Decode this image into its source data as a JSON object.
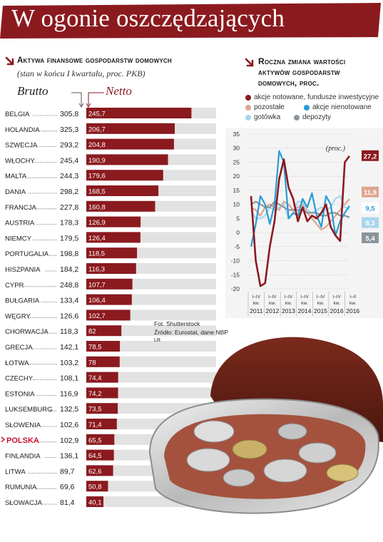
{
  "title": "W ogonie oszczędzających",
  "left_panel": {
    "header": "Aktywa finansowe gospodarstw domowych",
    "subtitle": "(stan w końcu I kwartału, proc. PKB)",
    "col_brutto": "Brutto",
    "col_netto": "Netto"
  },
  "right_panel": {
    "header_lines": [
      "Roczna zmiana wartości",
      "aktywów gospodarstw",
      "domowych, proc."
    ],
    "unit_label": "(proc.)",
    "legend": [
      {
        "label": "akcje notowane, fundusze inwestycyjne",
        "color": "#8b1a1f"
      },
      {
        "label": "pozostałe",
        "color": "#dda58f"
      },
      {
        "label": "akcje nienotowane",
        "color": "#2a9bd6"
      },
      {
        "label": "gotówka",
        "color": "#a9d6ee"
      },
      {
        "label": "depozyty",
        "color": "#8a949b"
      }
    ]
  },
  "credits": {
    "photo": "Fot. Shutterstock",
    "source": "Źródło: Eurostat, dane NBP",
    "initials": "LR"
  },
  "colors": {
    "brand_red": "#8b1a1f",
    "highlight_red": "#c8102e",
    "bar_bg": "#e2e2e2"
  },
  "chart_data": [
    {
      "type": "bar",
      "title": "Aktywa finansowe gospodarstw domowych",
      "subtitle": "(stan w końcu I kwartału, proc. PKB)",
      "highlight": "POLSKA",
      "categories": [
        "BELGIA",
        "HOLANDIA",
        "SZWECJA",
        "WŁOCHY",
        "MALTA",
        "DANIA",
        "FRANCJA",
        "AUSTRIA",
        "NIEMCY",
        "PORTUGALIA",
        "HISZPANIA",
        "CYPR",
        "BUŁGARIA",
        "WĘGRY",
        "CHORWACJA",
        "GRECJA",
        "ŁOTWA",
        "CZECHY",
        "ESTONIA",
        "LUKSEMBURG",
        "SŁOWENIA",
        "POLSKA",
        "FINLANDIA",
        "LITWA",
        "RUMUNIA",
        "SŁOWACJA"
      ],
      "brutto_labels": [
        "305,8",
        "325,3",
        "293,2",
        "245,4",
        "244,3",
        "298,2",
        "227,8",
        "178,3",
        "179,5",
        "198,8",
        "184,2",
        "248,8",
        "133,4",
        "126,6",
        "118,3",
        "142,1",
        "103,2",
        "108,1",
        "116,9",
        "132,5",
        "102,6",
        "102,9",
        "136,1",
        "89,7",
        "69,6",
        "81,4"
      ],
      "netto_labels": [
        "245,7",
        "206,7",
        "204,8",
        "190,9",
        "179,6",
        "168,5",
        "160,8",
        "126,9",
        "126,4",
        "118,5",
        "116,3",
        "107,7",
        "106,4",
        "102,7",
        "82",
        "78,5",
        "78",
        "74,4",
        "74,2",
        "73,5",
        "71,4",
        "65,5",
        "64,5",
        "62,6",
        "50,8",
        "40,1"
      ],
      "series": [
        {
          "name": "Brutto",
          "values": [
            305.8,
            325.3,
            293.2,
            245.4,
            244.3,
            298.2,
            227.8,
            178.3,
            179.5,
            198.8,
            184.2,
            248.8,
            133.4,
            126.6,
            118.3,
            142.1,
            103.2,
            108.1,
            116.9,
            132.5,
            102.6,
            102.9,
            136.1,
            89.7,
            69.6,
            81.4
          ]
        },
        {
          "name": "Netto",
          "values": [
            245.7,
            206.7,
            204.8,
            190.9,
            179.6,
            168.5,
            160.8,
            126.9,
            126.4,
            118.5,
            116.3,
            107.7,
            106.4,
            102.7,
            82,
            78.5,
            78,
            74.4,
            74.2,
            73.5,
            71.4,
            65.5,
            64.5,
            62.6,
            50.8,
            40.1
          ]
        }
      ]
    },
    {
      "type": "line",
      "title": "Roczna zmiana wartości aktywów gospodarstw domowych, proc.",
      "ylabel": "(proc.)",
      "ylim": [
        -20,
        35
      ],
      "yticks": [
        -20,
        -15,
        -10,
        -5,
        0,
        5,
        10,
        15,
        20,
        25,
        30,
        35
      ],
      "x": [
        2011.0,
        2011.25,
        2011.5,
        2011.75,
        2012.0,
        2012.25,
        2012.5,
        2012.75,
        2013.0,
        2013.25,
        2013.5,
        2013.75,
        2014.0,
        2014.25,
        2014.5,
        2014.75,
        2015.0,
        2015.25,
        2015.5,
        2015.75,
        2016.0,
        2016.25
      ],
      "x_tick_labels": [
        {
          "q": "I–IV",
          "kw": "kw.",
          "year": "2011"
        },
        {
          "q": "I–IV",
          "kw": "kw.",
          "year": "2012"
        },
        {
          "q": "I–IV",
          "kw": "kw.",
          "year": "2013"
        },
        {
          "q": "I–IV",
          "kw": "kw.",
          "year": "2014"
        },
        {
          "q": "I–IV",
          "kw": "kw.",
          "year": "2015"
        },
        {
          "q": "I–IV",
          "kw": "kw.",
          "year": "2016"
        },
        {
          "q": "I–II",
          "kw": "kw.",
          "year": "2016"
        }
      ],
      "series": [
        {
          "name": "akcje notowane, fundusze inwestycyjne",
          "color": "#8b1a1f",
          "end_label": "27,2",
          "values": [
            13,
            -10,
            -19,
            -18,
            -5,
            4,
            19,
            26,
            16,
            12,
            4,
            9,
            4,
            6,
            5,
            7,
            10,
            2,
            -1,
            -3,
            25,
            27.2
          ]
        },
        {
          "name": "pozostałe",
          "color": "#dda58f",
          "end_label": "11,9",
          "values": [
            9,
            8,
            6,
            9,
            10,
            9,
            8,
            11,
            10,
            8,
            9,
            10,
            7,
            5,
            3,
            1,
            2,
            4,
            6,
            8,
            10,
            11.9
          ]
        },
        {
          "name": "akcje nienotowane",
          "color": "#2a9bd6",
          "end_label": "9,5",
          "values": [
            -5,
            3,
            13,
            10,
            3,
            10,
            29,
            25,
            5,
            7,
            6,
            12,
            9,
            14,
            6,
            2,
            13,
            10,
            -1,
            4,
            7,
            9.5
          ]
        },
        {
          "name": "gotówka",
          "color": "#a9d6ee",
          "end_label": "8,3",
          "values": [
            8,
            5,
            5,
            6,
            9,
            8,
            9,
            10,
            5,
            7,
            11,
            11,
            8,
            7,
            8,
            9,
            8,
            9,
            12,
            13,
            9,
            8.3
          ]
        },
        {
          "name": "depozyty",
          "color": "#8a949b",
          "end_label": "5,4",
          "values": [
            10,
            11,
            10,
            9,
            9,
            11,
            10,
            9,
            8,
            8,
            8,
            8,
            7,
            7,
            7,
            6,
            6,
            7,
            7,
            6,
            6,
            5.4
          ]
        }
      ]
    }
  ]
}
